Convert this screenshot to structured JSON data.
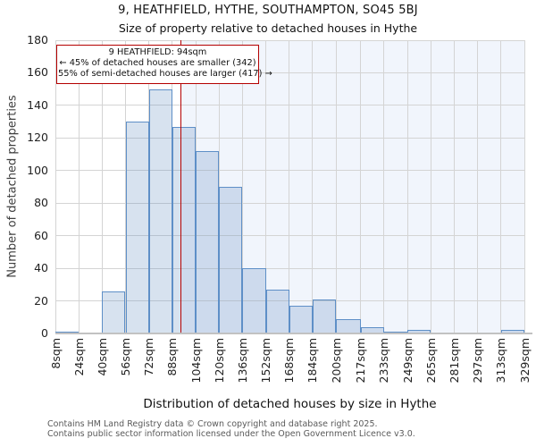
{
  "header": {
    "title": "9, HEATHFIELD, HYTHE, SOUTHAMPTON, SO45 5BJ",
    "subtitle": "Size of property relative to detached houses in Hythe"
  },
  "chart_data": {
    "type": "bar",
    "title": "9, HEATHFIELD, HYTHE, SOUTHAMPTON, SO45 5BJ",
    "subtitle": "Size of property relative to detached houses in Hythe",
    "xlabel": "Distribution of detached houses by size in Hythe",
    "ylabel": "Number of detached properties",
    "unit_suffix": "sqm",
    "bin_edges": [
      8,
      24,
      40,
      56,
      72,
      88,
      104,
      120,
      136,
      152,
      168,
      184,
      200,
      217,
      233,
      249,
      265,
      281,
      297,
      313,
      329
    ],
    "values": [
      1,
      0,
      26,
      130,
      150,
      127,
      112,
      90,
      40,
      27,
      17,
      21,
      9,
      4,
      1,
      2,
      0,
      0,
      0,
      2
    ],
    "ylim": [
      0,
      180
    ],
    "ytick_step": 20,
    "grid": "on",
    "legend": "none",
    "marker": {
      "value_sqm": 94,
      "label": "9 HEATHFIELD: 94sqm"
    },
    "annotation": {
      "line1": "9 HEATHFIELD: 94sqm",
      "line2": "← 45% of detached houses are smaller (342)",
      "line3": "55% of semi-detached houses are larger (417) →"
    },
    "colors": {
      "bar_fill": "#d9e4f4",
      "bar_border": "#5e8fc7",
      "marker_red": "#b40000",
      "shade_right_of_marker": "#f1f5fc",
      "gridline": "#d4d4d4",
      "axis_line": "#c2c2c2"
    }
  },
  "footer": {
    "line1": "Contains HM Land Registry data © Crown copyright and database right 2025.",
    "line2": "Contains public sector information licensed under the Open Government Licence v3.0."
  }
}
